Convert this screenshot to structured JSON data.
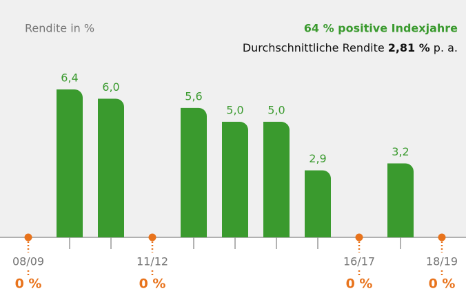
{
  "chart_data": {
    "type": "bar",
    "y_label": "Rendite in %",
    "headline": "64 % positive Indexjahre",
    "average_return": {
      "label": "Durchschnittliche Rendite",
      "value": "2,81 %",
      "suffix": "p. a."
    },
    "categories": [
      "08/09",
      null,
      null,
      "11/12",
      null,
      null,
      null,
      null,
      "16/17",
      null,
      "18/19"
    ],
    "values": [
      0,
      6.4,
      6.0,
      0,
      5.6,
      5.0,
      5.0,
      2.9,
      0,
      3.2,
      0
    ],
    "value_labels": [
      "0 %",
      "6,4",
      "6,0",
      "0 %",
      "5,6",
      "5,0",
      "5,0",
      "2,9",
      "0 %",
      "3,2",
      "0 %"
    ],
    "color": "#3a9a2e",
    "zero_color": "#e8731c"
  }
}
